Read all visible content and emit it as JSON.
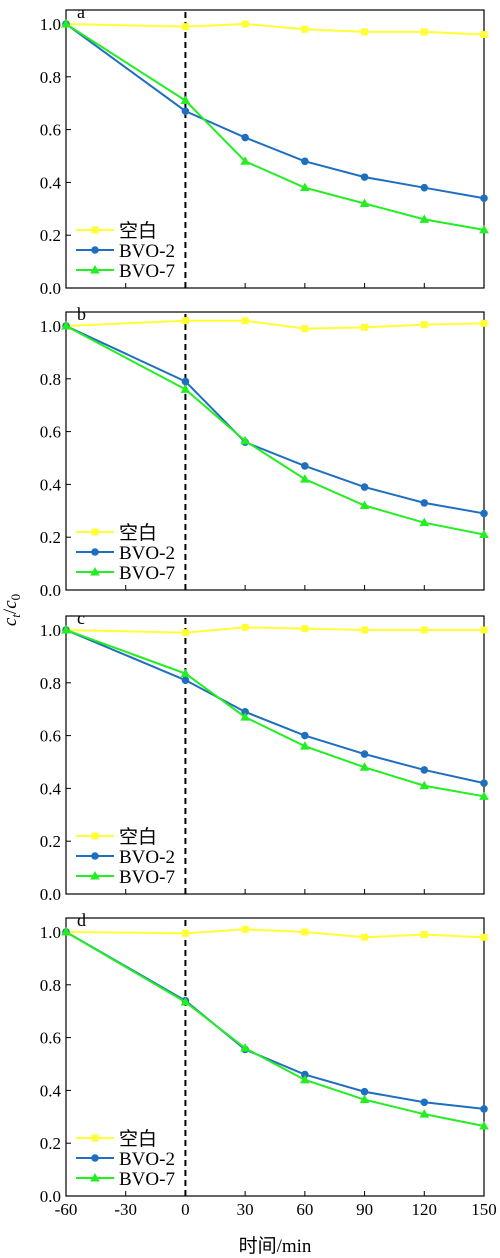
{
  "chart_data": {
    "type": "line",
    "xlabel": "时间/min",
    "ylabel": {
      "c": "c",
      "t": "t",
      "slash": "/",
      "c0_base": "c",
      "c0_sub": "0"
    },
    "xlim": [
      -60,
      150
    ],
    "ylim": [
      0.0,
      1.0
    ],
    "x": [
      -60,
      0,
      30,
      60,
      90,
      120,
      150
    ],
    "x_tick_labels": [
      "-60",
      "-30",
      "0",
      "30",
      "60",
      "90",
      "120",
      "150"
    ],
    "x_ticks": [
      -60,
      -30,
      0,
      30,
      60,
      90,
      120,
      150
    ],
    "y_ticks": [
      0.0,
      0.2,
      0.4,
      0.6,
      0.8,
      1.0
    ],
    "y_tick_labels": [
      "0.0",
      "0.2",
      "0.4",
      "0.6",
      "0.8",
      "1.0"
    ],
    "dashed_vline_x": 0,
    "legend_position": "bottom-left",
    "grid": false,
    "panels": [
      {
        "letter": "a",
        "series": [
          {
            "name": "空白",
            "color": "#ffff33",
            "marker": "square",
            "values": [
              1.0,
              0.99,
              1.0,
              0.98,
              0.97,
              0.97,
              0.96
            ]
          },
          {
            "name": "BVO-2",
            "color": "#1f6fbf",
            "marker": "circle",
            "values": [
              1.0,
              0.67,
              0.57,
              0.48,
              0.42,
              0.38,
              0.34
            ]
          },
          {
            "name": "BVO-7",
            "color": "#22ee22",
            "marker": "triangle",
            "values": [
              1.0,
              0.71,
              0.48,
              0.38,
              0.32,
              0.26,
              0.22
            ]
          }
        ]
      },
      {
        "letter": "b",
        "series": [
          {
            "name": "空白",
            "color": "#ffff33",
            "marker": "square",
            "values": [
              1.0,
              1.02,
              1.02,
              0.99,
              0.995,
              1.005,
              1.01
            ]
          },
          {
            "name": "BVO-2",
            "color": "#1f6fbf",
            "marker": "circle",
            "values": [
              1.0,
              0.79,
              0.56,
              0.47,
              0.39,
              0.33,
              0.29
            ]
          },
          {
            "name": "BVO-7",
            "color": "#22ee22",
            "marker": "triangle",
            "values": [
              1.0,
              0.76,
              0.565,
              0.42,
              0.32,
              0.255,
              0.21
            ]
          }
        ]
      },
      {
        "letter": "c",
        "series": [
          {
            "name": "空白",
            "color": "#ffff33",
            "marker": "square",
            "values": [
              1.0,
              0.99,
              1.01,
              1.005,
              1.0,
              1.0,
              1.0
            ]
          },
          {
            "name": "BVO-2",
            "color": "#1f6fbf",
            "marker": "circle",
            "values": [
              1.0,
              0.81,
              0.69,
              0.6,
              0.53,
              0.47,
              0.42
            ]
          },
          {
            "name": "BVO-7",
            "color": "#22ee22",
            "marker": "triangle",
            "values": [
              1.0,
              0.835,
              0.67,
              0.56,
              0.48,
              0.41,
              0.37
            ]
          }
        ]
      },
      {
        "letter": "d",
        "series": [
          {
            "name": "空白",
            "color": "#ffff33",
            "marker": "square",
            "values": [
              1.0,
              0.995,
              1.01,
              1.0,
              0.98,
              0.99,
              0.98
            ]
          },
          {
            "name": "BVO-2",
            "color": "#1f6fbf",
            "marker": "circle",
            "values": [
              1.0,
              0.74,
              0.555,
              0.46,
              0.395,
              0.355,
              0.33
            ]
          },
          {
            "name": "BVO-7",
            "color": "#22ee22",
            "marker": "triangle",
            "values": [
              1.0,
              0.735,
              0.56,
              0.44,
              0.365,
              0.31,
              0.265
            ]
          }
        ]
      }
    ]
  }
}
